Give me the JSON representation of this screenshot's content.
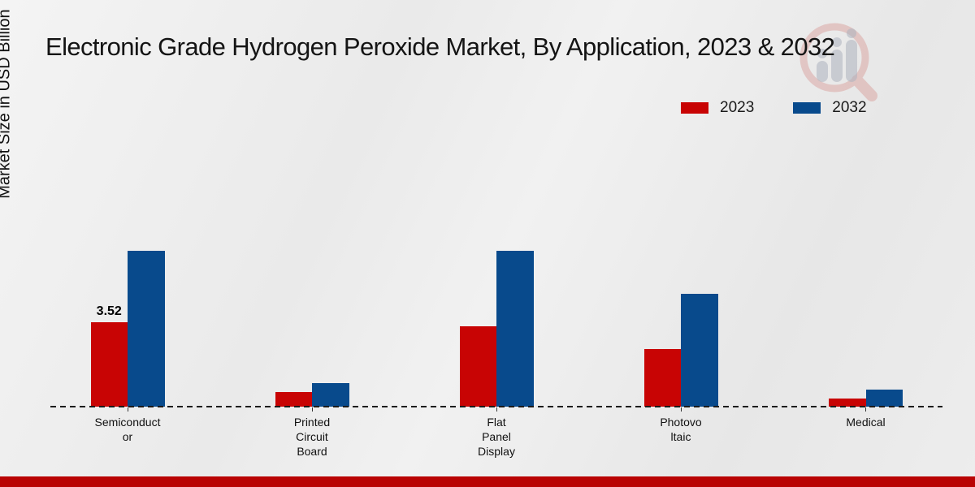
{
  "title": "Electronic Grade Hydrogen Peroxide Market, By Application, 2023 & 2032",
  "y_axis_label": "Market Size in USD Billion",
  "legend": [
    {
      "label": "2023",
      "color": "#c80404"
    },
    {
      "label": "2032",
      "color": "#084a8c"
    }
  ],
  "colors": {
    "series_2023": "#c80404",
    "series_2032": "#084a8c",
    "footer_bar": "#b90303",
    "baseline": "#1c1c1c",
    "watermark_pink": "#d89a96",
    "watermark_gray": "#aeb3bf"
  },
  "watermark": {
    "icon": "magnifier-bar-chart-logo"
  },
  "chart_data": {
    "type": "bar",
    "title": "Electronic Grade Hydrogen Peroxide Market, By Application, 2023 & 2032",
    "ylabel": "Market Size in USD Billion",
    "xlabel": "",
    "categories": [
      "Semiconductor",
      "Printed Circuit Board",
      "Flat Panel Display",
      "Photovoltaic",
      "Medical"
    ],
    "category_display": [
      "Semiconduct\nor",
      "Printed\nCircuit\nBoard",
      "Flat\nPanel\nDisplay",
      "Photovo\nltaic",
      "Medical"
    ],
    "series": [
      {
        "name": "2023",
        "color": "#c80404",
        "values": [
          3.52,
          0.6,
          3.35,
          2.4,
          0.35
        ]
      },
      {
        "name": "2032",
        "color": "#084a8c",
        "values": [
          6.5,
          1.0,
          6.5,
          4.7,
          0.7
        ]
      }
    ],
    "value_labels": [
      {
        "series_index": 0,
        "category_index": 0,
        "text": "3.52"
      }
    ],
    "ylim": [
      0,
      7
    ],
    "grid": false,
    "yticks_visible": false,
    "legend_position": "top-right",
    "baseline_style": "dashed"
  }
}
